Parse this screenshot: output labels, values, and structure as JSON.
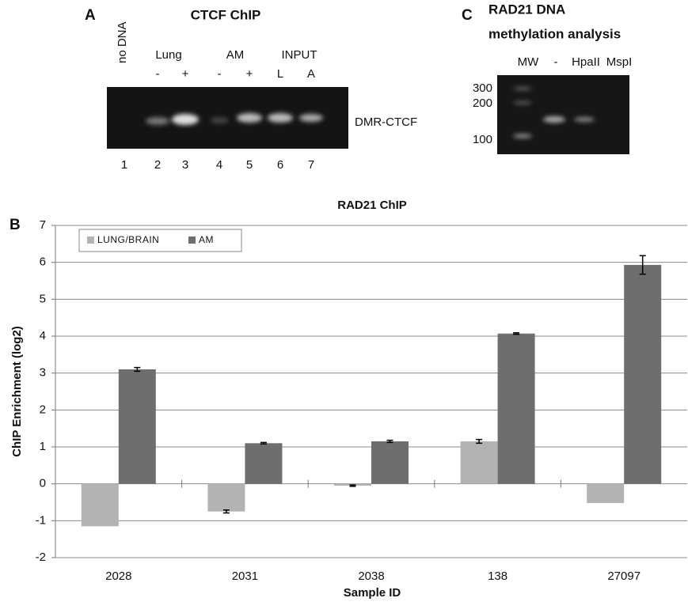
{
  "panel_a": {
    "label": "A",
    "title": "CTCF ChIP",
    "no_dna": "no DNA",
    "groups": [
      "Lung",
      "AM",
      "INPUT"
    ],
    "conditions": [
      "-",
      "+",
      "-",
      "+",
      "L",
      "A"
    ],
    "band": "DMR-CTCF",
    "lanes": [
      "1",
      "2",
      "3",
      "4",
      "5",
      "6",
      "7"
    ]
  },
  "panel_c": {
    "label": "C",
    "title_lines": [
      "RAD21 DNA",
      "methylation analysis"
    ],
    "lanes": [
      "MW",
      "-",
      "HpaII",
      "MspI"
    ],
    "markers": [
      "300",
      "200",
      "100"
    ]
  },
  "panel_b": {
    "label": "B"
  },
  "chart_data": {
    "type": "bar",
    "title": "RAD21 ChIP",
    "x_label": "Sample ID",
    "y_label": "ChIP Enrichment (log2)",
    "categories": [
      "2028",
      "2031",
      "2038",
      "138",
      "27097"
    ],
    "series": [
      {
        "name": "LUNG/BRAIN",
        "color": "#b3b3b3",
        "values": [
          -1.15,
          -0.75,
          -0.05,
          1.15,
          -0.52
        ],
        "errors": [
          0,
          0.04,
          0.02,
          0.05,
          0
        ]
      },
      {
        "name": "AM",
        "color": "#6e6e6e",
        "values": [
          3.1,
          1.1,
          1.15,
          4.07,
          5.93
        ],
        "errors": [
          0.05,
          0.02,
          0.03,
          0.02,
          0.25
        ]
      }
    ],
    "ylim": [
      -2,
      7
    ],
    "yticks": [
      -2,
      -1,
      0,
      1,
      2,
      3,
      4,
      5,
      6,
      7
    ],
    "grid": true
  }
}
